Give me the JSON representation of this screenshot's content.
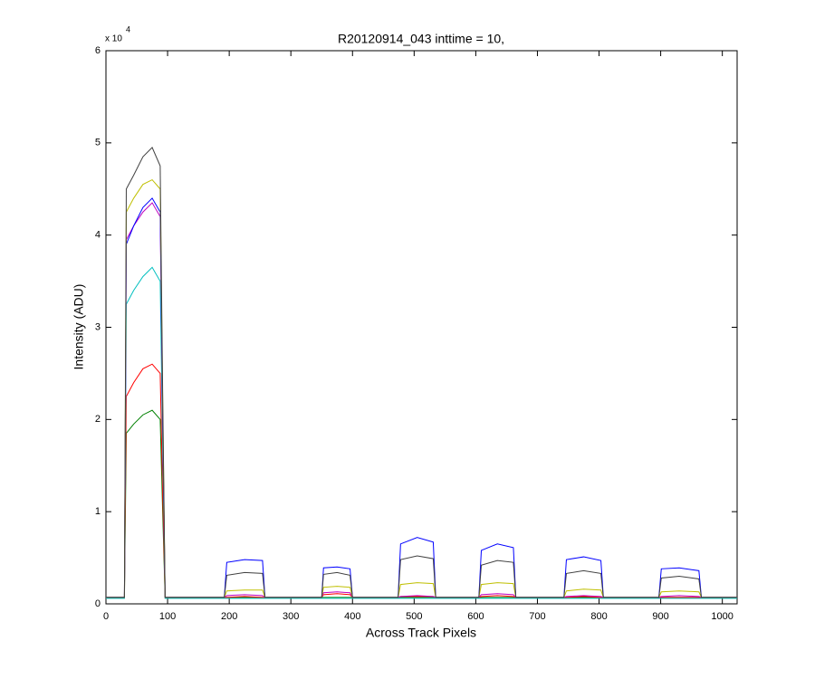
{
  "chart_data": {
    "type": "line",
    "title": "R20120914_043 inttime = 10,",
    "x_label": "Across Track Pixels",
    "y_label": "Intensity (ADU)",
    "y_multiplier": "x 10",
    "y_exponent": "4",
    "xlim": [
      0,
      1024
    ],
    "ylim": [
      0,
      60000
    ],
    "xticks": [
      0,
      100,
      200,
      300,
      400,
      500,
      600,
      700,
      800,
      900,
      1000
    ],
    "yticks": [
      {
        "value": 0,
        "label": "0"
      },
      {
        "value": 10000,
        "label": "1"
      },
      {
        "value": 20000,
        "label": "2"
      },
      {
        "value": 30000,
        "label": "3"
      },
      {
        "value": 40000,
        "label": "4"
      },
      {
        "value": 50000,
        "label": "5"
      },
      {
        "value": 60000,
        "label": "6"
      }
    ],
    "x": [
      0,
      30,
      33,
      45,
      60,
      75,
      88,
      92,
      96,
      192,
      196,
      225,
      254,
      258,
      350,
      353,
      375,
      396,
      400,
      474,
      478,
      505,
      531,
      535,
      605,
      609,
      635,
      661,
      665,
      743,
      747,
      775,
      803,
      807,
      897,
      901,
      930,
      962,
      966,
      1024
    ],
    "series": [
      {
        "color": "#008000",
        "values": [
          700,
          700,
          18500,
          19500,
          20500,
          21000,
          20000,
          10000,
          700,
          700,
          700,
          700,
          700,
          700,
          700,
          700,
          700,
          700,
          700,
          700,
          700,
          700,
          700,
          700,
          700,
          700,
          700,
          700,
          700,
          700,
          700,
          700,
          700,
          700,
          700,
          700,
          700,
          700,
          700,
          700
        ]
      },
      {
        "color": "#ff0000",
        "values": [
          700,
          700,
          22500,
          24000,
          25500,
          26000,
          25000,
          12000,
          700,
          700,
          700,
          800,
          700,
          700,
          700,
          1000,
          1100,
          1000,
          700,
          700,
          800,
          800,
          800,
          700,
          700,
          800,
          900,
          800,
          700,
          700,
          700,
          800,
          700,
          700,
          700,
          700,
          700,
          700,
          700,
          700
        ]
      },
      {
        "color": "#00bfbf",
        "values": [
          600,
          600,
          32500,
          34000,
          35500,
          36500,
          35000,
          17000,
          600,
          600,
          600,
          600,
          600,
          600,
          600,
          600,
          600,
          600,
          600,
          600,
          600,
          600,
          600,
          600,
          600,
          600,
          600,
          600,
          600,
          600,
          600,
          600,
          600,
          600,
          600,
          600,
          600,
          600,
          600,
          600
        ]
      },
      {
        "color": "#bf00bf",
        "values": [
          700,
          700,
          39500,
          41000,
          42500,
          43500,
          42000,
          20000,
          700,
          700,
          900,
          1000,
          900,
          700,
          700,
          1200,
          1300,
          1200,
          700,
          700,
          800,
          900,
          800,
          700,
          700,
          1000,
          1100,
          1000,
          700,
          700,
          800,
          900,
          800,
          700,
          700,
          800,
          900,
          800,
          700,
          700
        ]
      },
      {
        "color": "#0000ff",
        "values": [
          700,
          700,
          39000,
          41000,
          43000,
          44000,
          42500,
          20000,
          700,
          700,
          4500,
          4800,
          4700,
          700,
          700,
          3900,
          4000,
          3800,
          700,
          700,
          6500,
          7200,
          6700,
          700,
          700,
          5800,
          6500,
          6100,
          700,
          700,
          4800,
          5100,
          4700,
          700,
          700,
          3800,
          3900,
          3600,
          700,
          700
        ]
      },
      {
        "color": "#bfbf00",
        "values": [
          700,
          700,
          42500,
          44000,
          45500,
          46000,
          45000,
          22000,
          700,
          700,
          1400,
          1500,
          1500,
          700,
          700,
          1800,
          1900,
          1800,
          700,
          700,
          2100,
          2300,
          2200,
          700,
          700,
          2100,
          2300,
          2200,
          700,
          700,
          1400,
          1600,
          1500,
          700,
          700,
          1300,
          1400,
          1300,
          700,
          700
        ]
      },
      {
        "color": "#404040",
        "values": [
          700,
          700,
          45000,
          46500,
          48500,
          49500,
          47500,
          23000,
          700,
          700,
          3100,
          3400,
          3300,
          700,
          700,
          3200,
          3400,
          3100,
          700,
          700,
          4800,
          5200,
          4900,
          700,
          700,
          4200,
          4700,
          4500,
          700,
          700,
          3300,
          3600,
          3300,
          700,
          700,
          2800,
          3000,
          2700,
          700,
          700
        ]
      }
    ]
  }
}
